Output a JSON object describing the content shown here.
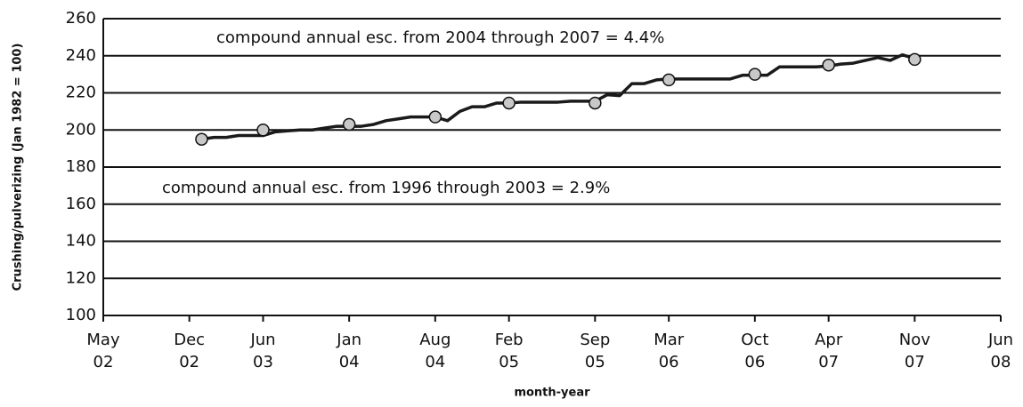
{
  "chart_data": {
    "type": "line",
    "ylabel": "Crushing/pulverizing (Jan 1982 = 100)",
    "xlabel": "month-year",
    "annotations": [
      "compound annual esc. from 2004 through 2007 = 4.4%",
      "compound annual esc. from 1996 through 2003 = 2.9%"
    ],
    "ylim": [
      100,
      260
    ],
    "yticks": [
      100,
      120,
      140,
      160,
      180,
      200,
      220,
      240,
      260
    ],
    "grid": true,
    "xlim": [
      "2002-05",
      "2008-06"
    ],
    "xticks": [
      {
        "value": "2002-05",
        "label": "May 02"
      },
      {
        "value": "2002-12",
        "label": "Dec 02"
      },
      {
        "value": "2003-06",
        "label": "Jun 03"
      },
      {
        "value": "2004-01",
        "label": "Jan 04"
      },
      {
        "value": "2004-08",
        "label": "Aug 04"
      },
      {
        "value": "2005-02",
        "label": "Feb 05"
      },
      {
        "value": "2005-09",
        "label": "Sep 05"
      },
      {
        "value": "2006-03",
        "label": "Mar 06"
      },
      {
        "value": "2006-10",
        "label": "Oct 06"
      },
      {
        "value": "2007-04",
        "label": "Apr 07"
      },
      {
        "value": "2007-11",
        "label": "Nov 07"
      },
      {
        "value": "2008-06",
        "label": "Jun 08"
      }
    ],
    "series": [
      {
        "color": "#1a1a1a",
        "x": [
          "2003-01",
          "2003-02",
          "2003-03",
          "2003-04",
          "2003-05",
          "2003-06",
          "2003-07",
          "2003-08",
          "2003-09",
          "2003-10",
          "2003-11",
          "2003-12",
          "2004-01",
          "2004-02",
          "2004-03",
          "2004-04",
          "2004-05",
          "2004-06",
          "2004-07",
          "2004-08",
          "2004-09",
          "2004-10",
          "2004-11",
          "2004-12",
          "2005-01",
          "2005-02",
          "2005-03",
          "2005-04",
          "2005-05",
          "2005-06",
          "2005-07",
          "2005-08",
          "2005-09",
          "2005-10",
          "2005-11",
          "2005-12",
          "2006-01",
          "2006-02",
          "2006-03",
          "2006-04",
          "2006-05",
          "2006-06",
          "2006-07",
          "2006-08",
          "2006-09",
          "2006-10",
          "2006-11",
          "2006-12",
          "2007-01",
          "2007-02",
          "2007-03",
          "2007-04",
          "2007-05",
          "2007-06",
          "2007-07",
          "2007-08",
          "2007-09",
          "2007-10",
          "2007-11"
        ],
        "values": [
          195,
          196,
          196,
          197,
          197,
          197,
          199,
          199.5,
          200,
          200,
          201,
          202,
          202,
          202,
          203,
          205,
          206,
          207,
          207,
          207,
          205,
          210,
          212.5,
          212.5,
          214.5,
          214.5,
          215,
          215,
          215,
          215,
          215.5,
          215.5,
          215.5,
          219,
          218.5,
          225,
          225,
          227,
          227.5,
          227.5,
          227.5,
          227.5,
          227.5,
          227.5,
          229.5,
          229.5,
          229.5,
          234,
          234,
          234,
          234,
          234.5,
          235.5,
          236,
          237.5,
          239,
          237.5,
          240.5,
          238.5
        ]
      },
      {
        "color": "#c8c8c8",
        "markers": true,
        "x": [
          "2003-01",
          "2003-06",
          "2004-01",
          "2004-08",
          "2005-02",
          "2005-09",
          "2006-03",
          "2006-10",
          "2007-04",
          "2007-11"
        ],
        "values": [
          195,
          200,
          203,
          207,
          214.5,
          214.5,
          227,
          230,
          235,
          238
        ]
      }
    ]
  }
}
